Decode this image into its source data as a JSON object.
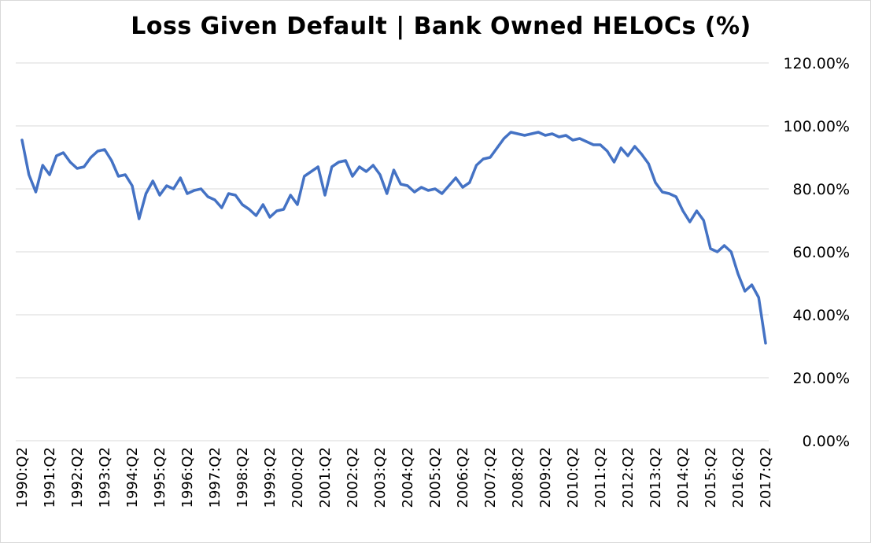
{
  "chart_data": {
    "type": "line",
    "title": "Loss Given Default | Bank Owned HELOCs (%)",
    "xlabel": "",
    "ylabel": "",
    "ylim": [
      0,
      120
    ],
    "y_ticks": [
      0,
      20,
      40,
      60,
      80,
      100,
      120
    ],
    "y_tick_labels": [
      "0.00%",
      "20.00%",
      "40.00%",
      "60.00%",
      "80.00%",
      "100.00%",
      "120.00%"
    ],
    "y_axis_side": "right",
    "grid": true,
    "legend": "none",
    "x_tick_labels": [
      "1990:Q2",
      "1991:Q2",
      "1992:Q2",
      "1993:Q2",
      "1994:Q2",
      "1995:Q2",
      "1996:Q2",
      "1997:Q2",
      "1998:Q2",
      "1999:Q2",
      "2000:Q2",
      "2001:Q2",
      "2002:Q2",
      "2003:Q2",
      "2004:Q2",
      "2005:Q2",
      "2006:Q2",
      "2007:Q2",
      "2008:Q2",
      "2009:Q2",
      "2010:Q2",
      "2011:Q2",
      "2012:Q2",
      "2013:Q2",
      "2014:Q2",
      "2015:Q2",
      "2016:Q2",
      "2017:Q2"
    ],
    "colors": {
      "line": "#4472c4",
      "grid": "#d9d9d9",
      "text": "#000000"
    },
    "series": [
      {
        "values": [
          95.5,
          84.5,
          79,
          87.5,
          84.5,
          90.5,
          91.5,
          88.5,
          86.5,
          87,
          90,
          92,
          92.5,
          89,
          84,
          84.5,
          81,
          70.5,
          78.5,
          82.5,
          78,
          81,
          80,
          83.5,
          78.5,
          79.5,
          80,
          77.5,
          76.5,
          74,
          78.5,
          78,
          75,
          73.5,
          71.5,
          75,
          71,
          73,
          73.5,
          78,
          75,
          84,
          85.5,
          87,
          78,
          87,
          88.5,
          89,
          84,
          87,
          85.5,
          87.5,
          84.5,
          78.5,
          86,
          81.5,
          81,
          79,
          80.5,
          79.5,
          80,
          78.5,
          81,
          83.5,
          80.5,
          82,
          87.5,
          89.5,
          90,
          93,
          96,
          98,
          97.5,
          97,
          97.5,
          98,
          97,
          97.5,
          96.5,
          97,
          95.5,
          96,
          95,
          94,
          94,
          92,
          88.5,
          93,
          90.5,
          93.5,
          91,
          88,
          82,
          79,
          78.5,
          77.5,
          73,
          69.5,
          73,
          70,
          61,
          60,
          62,
          60,
          53,
          47.5,
          49.5,
          45.5,
          31
        ]
      }
    ]
  }
}
